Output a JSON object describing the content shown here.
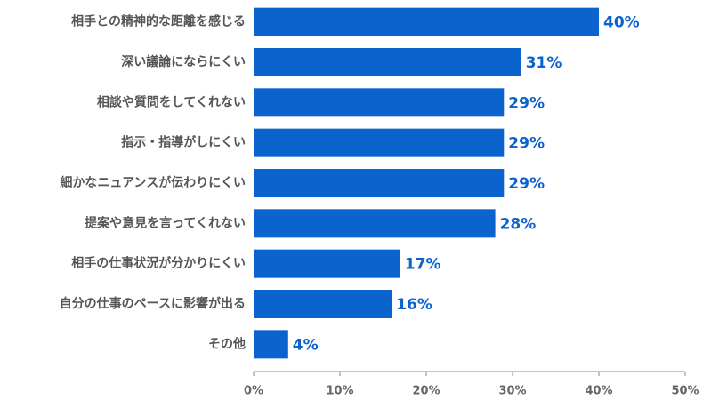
{
  "chart_data": {
    "type": "barh",
    "color": "#0b63ce",
    "categories": [
      "相手との精神的な距離を感じる",
      "深い議論にならにくい",
      "相談や質問をしてくれない",
      "指示・指導がしにくい",
      "細かなニュアンスが伝わりにくい",
      "提案や意見を言ってくれない",
      "相手の仕事状況が分かりにくい",
      "自分の仕事のペースに影響が出る",
      "その他"
    ],
    "values": [
      40,
      31,
      29,
      29,
      29,
      28,
      17,
      16,
      4
    ],
    "value_labels": [
      "40%",
      "31%",
      "29%",
      "29%",
      "29%",
      "28%",
      "17%",
      "16%",
      "4%"
    ],
    "xlim": [
      0,
      50
    ],
    "xticks": [
      {
        "value": 0,
        "label": "0%"
      },
      {
        "value": 10,
        "label": "10%"
      },
      {
        "value": 20,
        "label": "20%"
      },
      {
        "value": 30,
        "label": "30%"
      },
      {
        "value": 40,
        "label": "40%"
      },
      {
        "value": 50,
        "label": "50%"
      }
    ]
  }
}
